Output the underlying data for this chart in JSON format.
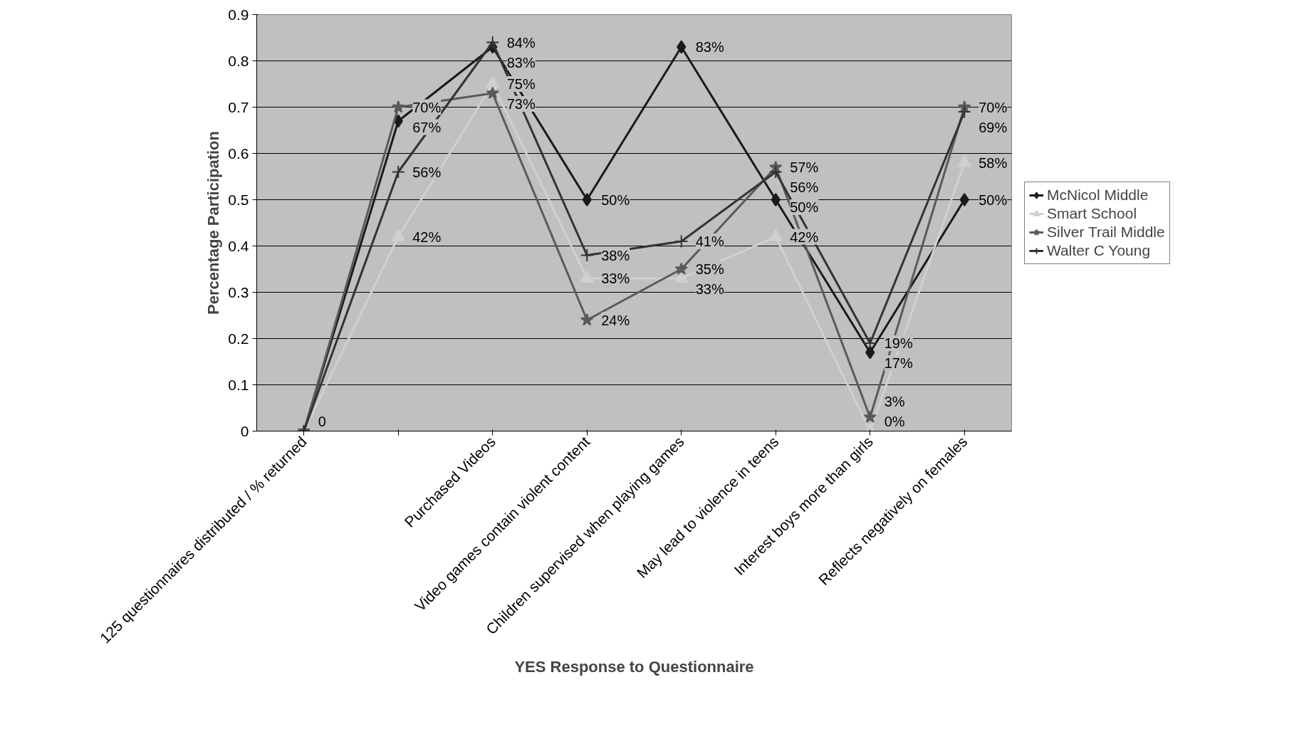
{
  "chart_data": {
    "type": "line",
    "xlabel": "YES Response to Questionnaire",
    "ylabel": "Percentage Participation",
    "categories": [
      "125 questionnaires distributed / % returned",
      null,
      "Purchased Videos",
      "Video games contain violent content",
      "Children supervised when playing games",
      "May lead to violence in teens",
      "Interest boys more than girls",
      "Reflects negatively on females"
    ],
    "ylim": [
      0,
      0.9
    ],
    "yticks": [
      0,
      0.1,
      0.2,
      0.3,
      0.4,
      0.5,
      0.6,
      0.7,
      0.8,
      0.9
    ],
    "grid": "y",
    "legend": "right",
    "series": [
      {
        "name": "McNicol Middle",
        "color": "#1a1a1a",
        "marker": "diamond",
        "values": [
          0,
          0.67,
          0.83,
          0.5,
          0.83,
          0.5,
          0.17,
          0.5
        ],
        "value_labels": [
          null,
          "67%",
          "83%",
          "50%",
          "83%",
          "50%",
          "17%",
          "50%"
        ]
      },
      {
        "name": "Smart School",
        "color": "#d0d0d0",
        "marker": "triangle",
        "values": [
          0,
          0.42,
          0.75,
          0.33,
          0.33,
          0.42,
          0,
          0.58
        ],
        "value_labels": [
          null,
          "42%",
          "75%",
          "33%",
          "33%",
          "42%",
          "0%",
          "58%"
        ]
      },
      {
        "name": "Silver Trail Middle",
        "color": "#5a5a5a",
        "marker": "star",
        "values": [
          0,
          0.7,
          0.73,
          0.24,
          0.35,
          0.57,
          0.03,
          0.7
        ],
        "value_labels": [
          "0",
          "70%",
          "73%",
          "24%",
          "35%",
          "57%",
          "3%",
          "70%"
        ]
      },
      {
        "name": "Walter C Young",
        "color": "#333333",
        "marker": "cross",
        "values": [
          0,
          0.56,
          0.84,
          0.38,
          0.41,
          0.56,
          0.19,
          0.69
        ],
        "value_labels": [
          null,
          "56%",
          "84%",
          "38%",
          "41%",
          "56%",
          "19%",
          "69%"
        ]
      }
    ]
  }
}
